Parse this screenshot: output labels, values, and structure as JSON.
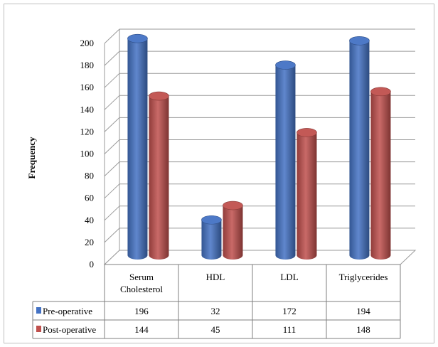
{
  "chart_data": {
    "type": "bar",
    "title": "",
    "xlabel": "",
    "ylabel": "Frequency",
    "ylim": [
      0,
      200
    ],
    "yticks": [
      0,
      20,
      40,
      60,
      80,
      100,
      120,
      140,
      160,
      180,
      200
    ],
    "categories": [
      "Serum Cholesterol",
      "HDL",
      "LDL",
      "Triglycerides"
    ],
    "category_lines": [
      [
        "Serum",
        "Cholesterol"
      ],
      [
        "HDL"
      ],
      [
        "LDL"
      ],
      [
        "Triglycerides"
      ]
    ],
    "series": [
      {
        "name": "Pre-operative",
        "values": [
          196,
          32,
          172,
          194
        ],
        "color": "#4472c4"
      },
      {
        "name": "Post-operative",
        "values": [
          144,
          45,
          111,
          148
        ],
        "color": "#c0504d"
      }
    ],
    "grid": true,
    "legend": "data-table"
  }
}
